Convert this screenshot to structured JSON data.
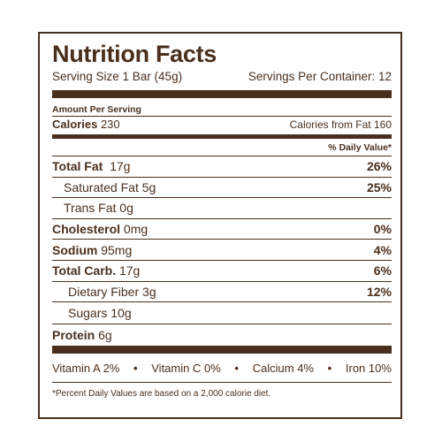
{
  "label": {
    "title": "Nutrition Facts",
    "serving_size": "Serving Size 1 Bar (45g)",
    "servings_per_container": "Servings Per Container: 12",
    "amount_per_serving": "Amount Per Serving",
    "calories_label": "Calories",
    "calories_value": "230",
    "calories_from_fat": "Calories from Fat 160",
    "daily_value_header": "% Daily Value*",
    "nutrients": [
      {
        "name": "Total Fat",
        "amount": "17g",
        "dv": "26%"
      },
      {
        "name": "Saturated Fat",
        "amount": "5g",
        "dv": "25%"
      },
      {
        "name": "Trans Fat",
        "amount": "0g",
        "dv": ""
      },
      {
        "name": "Cholesterol",
        "amount": "0mg",
        "dv": "0%"
      },
      {
        "name": "Sodium",
        "amount": "95mg",
        "dv": "4%"
      },
      {
        "name": "Total Carb.",
        "amount": "17g",
        "dv": "6%"
      },
      {
        "name": "Dietary Fiber",
        "amount": "3g",
        "dv": "12%"
      },
      {
        "name": "Sugars",
        "amount": "10g",
        "dv": ""
      }
    ],
    "protein": {
      "name": "Protein",
      "amount": "6g"
    },
    "vitamins": [
      "Vitamin A 2%",
      "Vitamin C 0%",
      "Calcium 4%",
      "Iron 10%"
    ],
    "separator": "•",
    "footnote": "*Percent Daily Values are based on a 2,000 calorie diet."
  },
  "colors": {
    "ink": "#4a2f1c",
    "background": "#ffffff"
  }
}
